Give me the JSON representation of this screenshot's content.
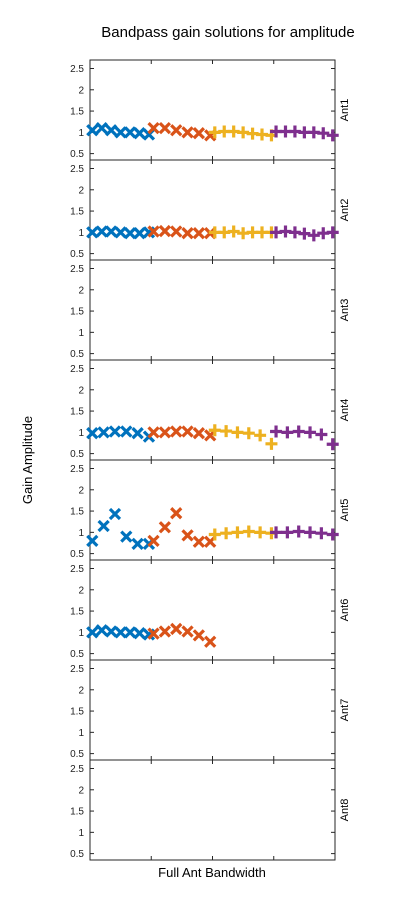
{
  "chart_data": {
    "type": "scatter",
    "title": "Bandpass gain solutions for amplitude",
    "xlabel": "Full Ant Bandwidth",
    "ylabel": "Gain Amplitude",
    "ylim": [
      0.35,
      2.7
    ],
    "yticks": [
      0.5,
      1,
      1.5,
      2,
      2.5
    ],
    "xlim": [
      0,
      32
    ],
    "xticks": [
      8,
      16,
      24
    ],
    "grid": false,
    "series_styles": [
      {
        "color": "#0072BD",
        "marker": "x"
      },
      {
        "color": "#D95319",
        "marker": "x"
      },
      {
        "color": "#EDB120",
        "marker": "+"
      },
      {
        "color": "#7E2F8E",
        "marker": "+"
      }
    ],
    "panels": [
      {
        "label": "Ant1",
        "series": [
          [
            1.05,
            1.1,
            1.05,
            1.0,
            1.0,
            0.98,
            0.95
          ],
          [
            1.1,
            1.1,
            1.05,
            1.0,
            0.98,
            0.93
          ],
          [
            1.0,
            1.02,
            1.02,
            1.0,
            0.97,
            0.95,
            0.93
          ],
          [
            1.02,
            1.02,
            1.02,
            1.0,
            1.0,
            0.98,
            0.93
          ]
        ]
      },
      {
        "label": "Ant2",
        "series": [
          [
            1.0,
            1.02,
            1.02,
            1.0,
            0.98,
            0.98,
            1.0
          ],
          [
            1.02,
            1.03,
            1.02,
            0.98,
            0.98,
            0.98
          ],
          [
            1.0,
            1.0,
            1.02,
            0.98,
            1.0,
            1.0,
            1.0
          ],
          [
            1.0,
            1.02,
            1.0,
            0.97,
            0.93,
            0.98,
            1.0
          ]
        ]
      },
      {
        "label": "Ant3",
        "series": [
          [],
          [],
          [],
          []
        ]
      },
      {
        "label": "Ant4",
        "series": [
          [
            0.98,
            1.0,
            1.02,
            1.02,
            0.98,
            0.9
          ],
          [
            1.0,
            1.0,
            1.02,
            1.02,
            0.98,
            0.93
          ],
          [
            1.05,
            1.03,
            1.0,
            0.98,
            0.93,
            0.73
          ],
          [
            1.02,
            1.0,
            1.02,
            1.0,
            0.95,
            0.72
          ]
        ]
      },
      {
        "label": "Ant5",
        "series": [
          [
            0.8,
            1.15,
            1.43,
            0.9,
            0.73,
            0.73
          ],
          [
            0.8,
            1.12,
            1.45,
            0.93,
            0.78,
            0.78
          ],
          [
            0.95,
            0.98,
            1.0,
            1.02,
            1.0,
            0.98
          ],
          [
            1.0,
            1.0,
            1.02,
            1.0,
            0.98,
            0.95
          ]
        ]
      },
      {
        "label": "Ant6",
        "series": [
          [
            1.0,
            1.05,
            1.02,
            1.0,
            1.0,
            0.98,
            0.95
          ],
          [
            0.97,
            1.02,
            1.08,
            1.02,
            0.93,
            0.78
          ],
          [],
          []
        ]
      },
      {
        "label": "Ant7",
        "series": [
          [],
          [],
          [],
          []
        ]
      },
      {
        "label": "Ant8",
        "series": [
          [],
          [],
          [],
          []
        ]
      }
    ]
  }
}
